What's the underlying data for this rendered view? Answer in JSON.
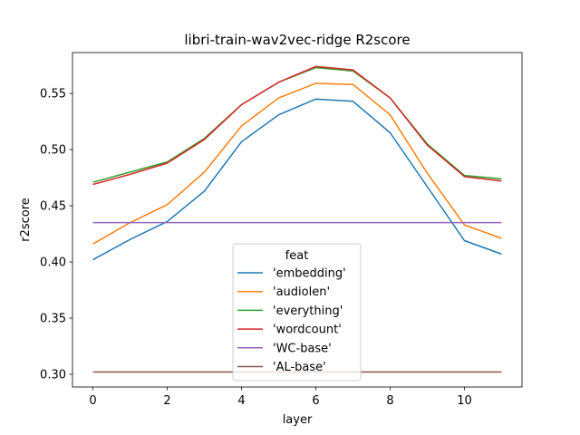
{
  "chart_data": {
    "type": "line",
    "title": "libri-train-wav2vec-ridge R2score",
    "xlabel": "layer",
    "ylabel": "r2score",
    "xlim": [
      -0.55,
      11.55
    ],
    "ylim": [
      0.2887,
      0.5864
    ],
    "xticks": [
      0,
      2,
      4,
      6,
      8,
      10
    ],
    "yticks": [
      0.3,
      0.35,
      0.4,
      0.45,
      0.5,
      0.55
    ],
    "ytick_labels": [
      "0.30",
      "0.35",
      "0.40",
      "0.45",
      "0.50",
      "0.55"
    ],
    "legend_title": "feat",
    "legend_loc": "lower center",
    "x": [
      0,
      1,
      2,
      3,
      4,
      5,
      6,
      7,
      8,
      9,
      10,
      11
    ],
    "series": [
      {
        "name": " 'embedding'",
        "color": "#1f77b4",
        "values": [
          0.402,
          0.42,
          0.436,
          0.463,
          0.507,
          0.531,
          0.545,
          0.543,
          0.515,
          0.467,
          0.419,
          0.407
        ]
      },
      {
        "name": " 'audiolen'",
        "color": "#ff7f0e",
        "values": [
          0.416,
          0.435,
          0.451,
          0.48,
          0.521,
          0.546,
          0.559,
          0.558,
          0.531,
          0.479,
          0.433,
          0.421
        ]
      },
      {
        "name": " 'everything'",
        "color": "#2ca02c",
        "values": [
          0.471,
          0.48,
          0.489,
          0.51,
          0.54,
          0.56,
          0.573,
          0.57,
          0.546,
          0.505,
          0.477,
          0.474
        ]
      },
      {
        "name": " 'wordcount'",
        "color": "#d62728",
        "values": [
          0.469,
          0.478,
          0.488,
          0.509,
          0.54,
          0.56,
          0.574,
          0.571,
          0.546,
          0.504,
          0.476,
          0.472
        ]
      },
      {
        "name": "'WC-base'",
        "color": "#9467bd",
        "values": [
          0.435,
          0.435,
          0.435,
          0.435,
          0.435,
          0.435,
          0.435,
          0.435,
          0.435,
          0.435,
          0.435,
          0.435
        ]
      },
      {
        "name": "'AL-base'",
        "color": "#8c564b",
        "values": [
          0.302,
          0.302,
          0.302,
          0.302,
          0.302,
          0.302,
          0.302,
          0.302,
          0.302,
          0.302,
          0.302,
          0.302
        ]
      }
    ]
  }
}
